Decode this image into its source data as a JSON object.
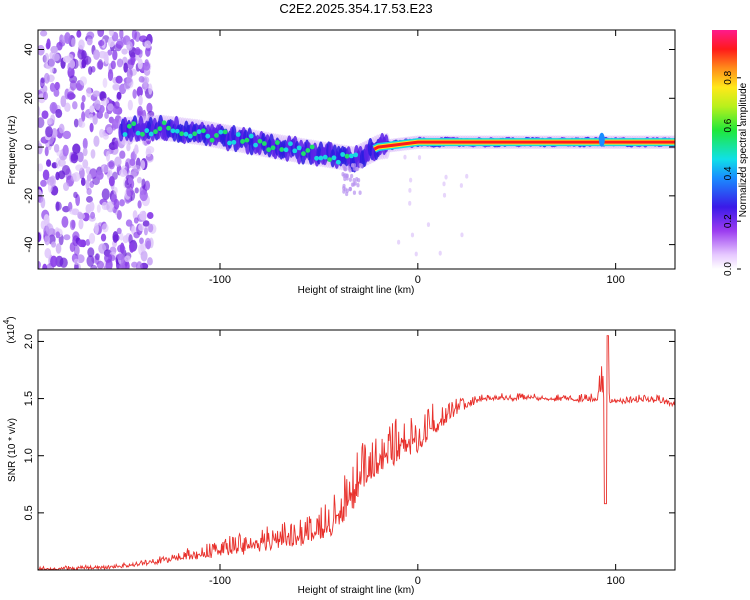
{
  "title": "C2E2.2025.354.17.53.E23",
  "colors": {
    "snr_line": "#e8312c",
    "frame": "#000000"
  },
  "chart_data": [
    {
      "type": "heatmap",
      "name": "spectrogram",
      "xlabel": "Height of straight line (km)",
      "ylabel": "Frequency (Hz)",
      "xlim": [
        -192,
        130
      ],
      "ylim": [
        -50,
        48
      ],
      "xticks": [
        -100,
        0,
        100
      ],
      "xtick_labels": [
        "-100",
        "0",
        "100"
      ],
      "yticks": [
        -40,
        -20,
        0,
        20,
        40
      ],
      "ytick_labels": [
        "-40",
        "-20",
        "0",
        "20",
        "40"
      ],
      "colorbar": {
        "label": "Normalized spectral amplitude",
        "range": [
          0,
          1
        ],
        "ticks": [
          0.0,
          0.2,
          0.4,
          0.6,
          0.8
        ],
        "tick_labels": [
          "0.0",
          "0.2",
          "0.4",
          "0.6",
          "0.8"
        ],
        "colormap": "rainbow (white-purple-blue-cyan-green-yellow-red-magenta)"
      },
      "features": {
        "noise_band_x": [
          -192,
          -140
        ],
        "signal_track": [
          {
            "x": -150,
            "f": 7
          },
          {
            "x": -130,
            "f": 8
          },
          {
            "x": -110,
            "f": 6
          },
          {
            "x": -90,
            "f": 3
          },
          {
            "x": -70,
            "f": 0
          },
          {
            "x": -55,
            "f": -2
          },
          {
            "x": -40,
            "f": -4
          },
          {
            "x": -32,
            "f": -5
          },
          {
            "x": -20,
            "f": 0
          },
          {
            "x": 0,
            "f": 2
          },
          {
            "x": 50,
            "f": 2
          },
          {
            "x": 130,
            "f": 2
          }
        ]
      }
    },
    {
      "type": "line",
      "name": "snr",
      "xlabel": "Height of straight line (km)",
      "ylabel": "SNR (10 * v/v)",
      "scale_label": "(x10^4)",
      "scale_base": "(x10",
      "scale_exp": "4",
      "xlim": [
        -192,
        130
      ],
      "ylim": [
        0,
        2.1
      ],
      "xticks": [
        -100,
        0,
        100
      ],
      "xtick_labels": [
        "-100",
        "0",
        "100"
      ],
      "yticks": [
        0.5,
        1.0,
        1.5,
        2.0
      ],
      "ytick_labels": [
        "0.5",
        "1.0",
        "1.5",
        "2.0"
      ],
      "series": [
        {
          "name": "SNR",
          "x": [
            -192,
            -160,
            -140,
            -120,
            -100,
            -80,
            -60,
            -45,
            -35,
            -30,
            -20,
            -10,
            0,
            10,
            20,
            30,
            40,
            60,
            80,
            90,
            95,
            97,
            100,
            110,
            120,
            130
          ],
          "y": [
            0.01,
            0.02,
            0.05,
            0.09,
            0.13,
            0.17,
            0.22,
            0.3,
            0.45,
            0.65,
            0.85,
            0.95,
            1.05,
            1.22,
            1.38,
            1.48,
            1.5,
            1.5,
            1.49,
            1.48,
            1.5,
            1.47,
            1.47,
            1.48,
            1.47,
            1.45
          ],
          "envelope_max": [
            0.03,
            0.05,
            0.09,
            0.18,
            0.28,
            0.38,
            0.45,
            0.6,
            0.95,
            1.1,
            1.2,
            1.35,
            1.4,
            1.48,
            1.52,
            1.55,
            1.55,
            1.55,
            1.54,
            1.55,
            2.05,
            1.52,
            1.52,
            1.54,
            1.55,
            1.52
          ]
        }
      ]
    }
  ]
}
